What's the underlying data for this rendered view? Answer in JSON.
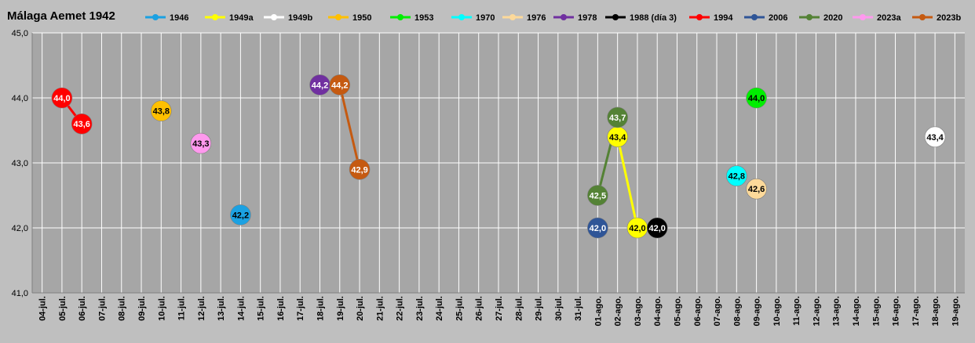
{
  "chart_data": {
    "type": "line",
    "title": "Málaga Aemet 1942",
    "xlabel": "",
    "ylabel": "",
    "ylim": [
      41.0,
      45.0
    ],
    "yticks": [
      "41,0",
      "42,0",
      "43,0",
      "44,0",
      "45,0"
    ],
    "grid": true,
    "legend_position": "top",
    "categories": [
      "04-jul.",
      "05-jul.",
      "06-jul.",
      "07-jul.",
      "08-jul.",
      "09-jul.",
      "10-jul.",
      "11-jul.",
      "12-jul.",
      "13-jul.",
      "14-jul.",
      "15-jul.",
      "16-jul.",
      "17-jul.",
      "18-jul.",
      "19-jul.",
      "20-jul.",
      "21-jul.",
      "22-jul.",
      "23-jul.",
      "24-jul.",
      "25-jul.",
      "26-jul.",
      "27-jul.",
      "28-jul.",
      "29-jul.",
      "30-jul.",
      "31-jul.",
      "01-ago.",
      "02-ago.",
      "03-ago.",
      "04-ago.",
      "05-ago.",
      "06-ago.",
      "07-ago.",
      "08-ago.",
      "09-ago.",
      "10-ago.",
      "11-ago.",
      "12-ago.",
      "13-ago.",
      "14-ago.",
      "15-ago.",
      "16-ago.",
      "17-ago.",
      "18-ago.",
      "19-ago."
    ],
    "series": [
      {
        "name": "1946",
        "color": "#1ba1e2",
        "labelColor": "#000000",
        "points": [
          {
            "x": "14-jul.",
            "y": 42.2,
            "label": "42,2"
          }
        ]
      },
      {
        "name": "1949a",
        "color": "#ffff00",
        "labelColor": "#000000",
        "points": [
          {
            "x": "02-ago.",
            "y": 43.4,
            "label": "43,4"
          },
          {
            "x": "03-ago.",
            "y": 42.0,
            "label": "42,0"
          }
        ]
      },
      {
        "name": "1949b",
        "color": "#ffffff",
        "labelColor": "#000000",
        "points": [
          {
            "x": "18-ago.",
            "y": 43.4,
            "label": "43,4"
          }
        ]
      },
      {
        "name": "1950",
        "color": "#ffc000",
        "labelColor": "#000000",
        "points": [
          {
            "x": "10-jul.",
            "y": 43.8,
            "label": "43,8"
          }
        ]
      },
      {
        "name": "1953",
        "color": "#00ee00",
        "labelColor": "#000000",
        "points": [
          {
            "x": "09-ago.",
            "y": 44.0,
            "label": "44,0"
          }
        ]
      },
      {
        "name": "1970",
        "color": "#00ffff",
        "labelColor": "#000000",
        "points": [
          {
            "x": "08-ago.",
            "y": 42.8,
            "label": "42,8"
          }
        ]
      },
      {
        "name": "1976",
        "color": "#fcd99a",
        "labelColor": "#000000",
        "points": [
          {
            "x": "09-ago.",
            "y": 42.6,
            "label": "42,6"
          }
        ]
      },
      {
        "name": "1978",
        "color": "#7030a0",
        "labelColor": "#ffffff",
        "points": [
          {
            "x": "18-jul.",
            "y": 44.2,
            "label": "44,2"
          }
        ]
      },
      {
        "name": "1988 (día 3)",
        "color": "#000000",
        "labelColor": "#ffffff",
        "points": [
          {
            "x": "04-ago.",
            "y": 42.0,
            "label": "42,0"
          }
        ]
      },
      {
        "name": "1994",
        "color": "#ff0000",
        "labelColor": "#ffffff",
        "points": [
          {
            "x": "05-jul.",
            "y": 44.0,
            "label": "44,0"
          },
          {
            "x": "06-jul.",
            "y": 43.6,
            "label": "43,6"
          }
        ]
      },
      {
        "name": "2006",
        "color": "#2f5597",
        "labelColor": "#ffffff",
        "points": [
          {
            "x": "01-ago.",
            "y": 42.0,
            "label": "42,0"
          }
        ]
      },
      {
        "name": "2020",
        "color": "#548235",
        "labelColor": "#ffffff",
        "points": [
          {
            "x": "01-ago.",
            "y": 42.5,
            "label": "42,5"
          },
          {
            "x": "02-ago.",
            "y": 43.7,
            "label": "43,7"
          }
        ]
      },
      {
        "name": "2023a",
        "color": "#ff99ee",
        "labelColor": "#000000",
        "points": [
          {
            "x": "12-jul.",
            "y": 43.3,
            "label": "43,3"
          }
        ]
      },
      {
        "name": "2023b",
        "color": "#c55a11",
        "labelColor": "#ffffff",
        "points": [
          {
            "x": "19-jul.",
            "y": 44.2,
            "label": "44,2"
          },
          {
            "x": "20-jul.",
            "y": 42.9,
            "label": "42,9"
          }
        ]
      }
    ]
  }
}
